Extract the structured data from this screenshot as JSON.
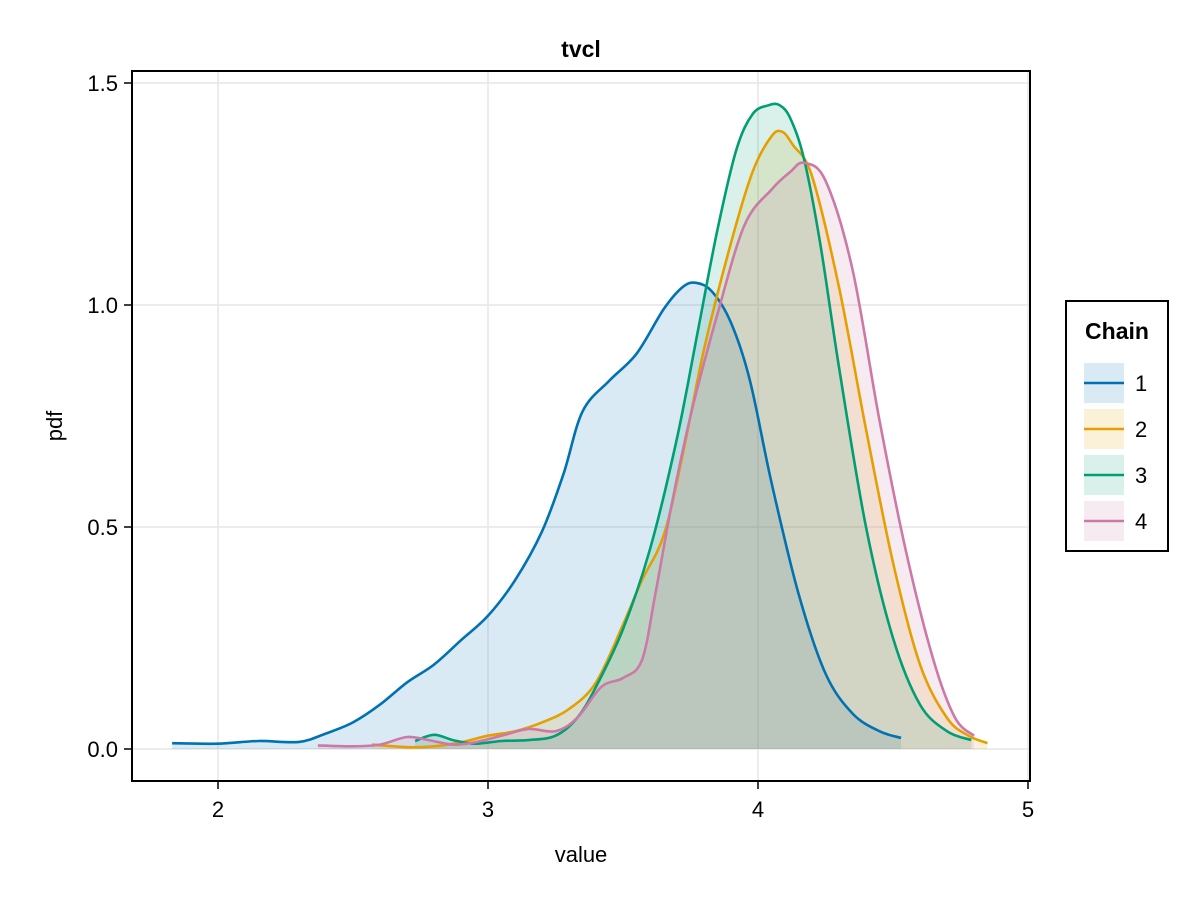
{
  "chart_data": {
    "type": "area",
    "title": "tvcl",
    "xlabel": "value",
    "ylabel": "pdf",
    "xlim": [
      1.68,
      5.0
    ],
    "ylim": [
      -0.07,
      1.53
    ],
    "xticks": [
      2,
      3,
      4,
      5
    ],
    "xtick_labels": [
      "2",
      "3",
      "4",
      "5"
    ],
    "yticks": [
      0.0,
      0.5,
      1.0,
      1.5
    ],
    "ytick_labels": [
      "0.0",
      "0.5",
      "1.0",
      "1.5"
    ],
    "grid": true,
    "legend": {
      "title": "Chain",
      "position": "right"
    },
    "series": [
      {
        "name": "1",
        "color": "#0072b2",
        "fill": "#0072b2",
        "x": [
          1.83,
          2.0,
          2.15,
          2.3,
          2.4,
          2.5,
          2.6,
          2.7,
          2.8,
          2.9,
          3.0,
          3.1,
          3.2,
          3.28,
          3.35,
          3.45,
          3.55,
          3.65,
          3.72,
          3.77,
          3.83,
          3.9,
          3.97,
          4.05,
          4.15,
          4.25,
          4.35,
          4.45,
          4.53
        ],
        "values": [
          0.013,
          0.012,
          0.018,
          0.016,
          0.035,
          0.06,
          0.1,
          0.15,
          0.19,
          0.245,
          0.3,
          0.38,
          0.49,
          0.62,
          0.76,
          0.83,
          0.89,
          0.99,
          1.04,
          1.05,
          1.03,
          0.96,
          0.83,
          0.6,
          0.35,
          0.17,
          0.08,
          0.04,
          0.025
        ]
      },
      {
        "name": "2",
        "color": "#e69f00",
        "fill": "#e69f00",
        "x": [
          2.57,
          2.7,
          2.8,
          2.9,
          3.0,
          3.1,
          3.2,
          3.3,
          3.4,
          3.5,
          3.57,
          3.65,
          3.72,
          3.8,
          3.9,
          3.98,
          4.05,
          4.09,
          4.13,
          4.2,
          4.3,
          4.4,
          4.5,
          4.6,
          4.7,
          4.78,
          4.85
        ],
        "values": [
          0.01,
          0.004,
          0.006,
          0.015,
          0.03,
          0.04,
          0.06,
          0.09,
          0.15,
          0.28,
          0.38,
          0.48,
          0.66,
          0.9,
          1.14,
          1.3,
          1.38,
          1.39,
          1.36,
          1.29,
          1.04,
          0.72,
          0.42,
          0.19,
          0.07,
          0.03,
          0.013
        ]
      },
      {
        "name": "3",
        "color": "#009e73",
        "fill": "#009e73",
        "x": [
          2.73,
          2.8,
          2.87,
          2.95,
          3.05,
          3.15,
          3.25,
          3.33,
          3.4,
          3.5,
          3.6,
          3.7,
          3.78,
          3.85,
          3.92,
          3.98,
          4.04,
          4.08,
          4.12,
          4.17,
          4.23,
          4.3,
          4.4,
          4.5,
          4.6,
          4.7,
          4.79
        ],
        "values": [
          0.018,
          0.032,
          0.02,
          0.012,
          0.018,
          0.02,
          0.03,
          0.07,
          0.14,
          0.27,
          0.45,
          0.7,
          0.95,
          1.17,
          1.35,
          1.43,
          1.45,
          1.45,
          1.42,
          1.33,
          1.14,
          0.86,
          0.5,
          0.25,
          0.1,
          0.04,
          0.02
        ]
      },
      {
        "name": "4",
        "color": "#cc79a7",
        "fill": "#cc79a7",
        "x": [
          2.37,
          2.5,
          2.6,
          2.7,
          2.78,
          2.87,
          2.95,
          3.05,
          3.15,
          3.25,
          3.33,
          3.42,
          3.5,
          3.57,
          3.62,
          3.68,
          3.75,
          3.85,
          3.95,
          4.05,
          4.12,
          4.17,
          4.25,
          4.35,
          4.45,
          4.55,
          4.65,
          4.73,
          4.8
        ],
        "values": [
          0.008,
          0.006,
          0.01,
          0.027,
          0.02,
          0.01,
          0.015,
          0.03,
          0.045,
          0.04,
          0.07,
          0.14,
          0.16,
          0.2,
          0.35,
          0.55,
          0.75,
          0.98,
          1.18,
          1.26,
          1.3,
          1.32,
          1.28,
          1.08,
          0.74,
          0.44,
          0.2,
          0.07,
          0.03
        ]
      }
    ]
  }
}
